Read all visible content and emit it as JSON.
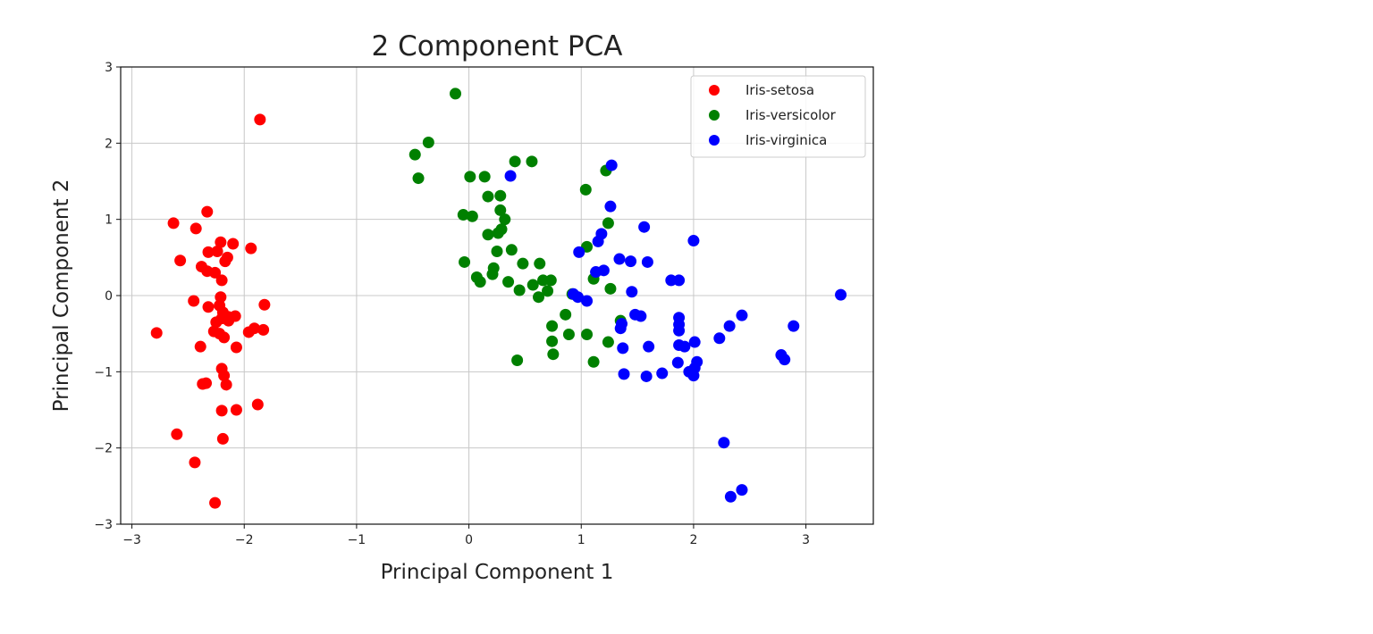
{
  "chart_data": {
    "type": "scatter",
    "title": "2 Component PCA",
    "xlabel": "Principal Component 1",
    "ylabel": "Principal Component 2",
    "xlim": [
      -3.1,
      3.6
    ],
    "ylim": [
      -3.0,
      3.0
    ],
    "xticks": [
      -3,
      -2,
      -1,
      0,
      1,
      2,
      3
    ],
    "yticks": [
      -3,
      -2,
      -1,
      0,
      1,
      2,
      3
    ],
    "tick_labels_x": [
      "−3",
      "−2",
      "−1",
      "0",
      "1",
      "2",
      "3"
    ],
    "tick_labels_y": [
      "−3",
      "−2",
      "−1",
      "0",
      "1",
      "2",
      "3"
    ],
    "grid": true,
    "legend_placement": "top-right",
    "series": [
      {
        "name": "Iris-setosa",
        "color": "#ff0000",
        "points": [
          [
            -1.86,
            2.31
          ],
          [
            -2.63,
            0.95
          ],
          [
            -2.33,
            1.1
          ],
          [
            -2.43,
            0.88
          ],
          [
            -2.21,
            0.7
          ],
          [
            -2.1,
            0.68
          ],
          [
            -1.94,
            0.62
          ],
          [
            -2.57,
            0.46
          ],
          [
            -2.32,
            0.57
          ],
          [
            -2.24,
            0.58
          ],
          [
            -2.17,
            0.45
          ],
          [
            -2.15,
            0.5
          ],
          [
            -2.38,
            0.38
          ],
          [
            -2.33,
            0.32
          ],
          [
            -2.26,
            0.3
          ],
          [
            -2.2,
            0.2
          ],
          [
            -2.21,
            -0.02
          ],
          [
            -2.45,
            -0.07
          ],
          [
            -2.32,
            -0.15
          ],
          [
            -2.22,
            -0.13
          ],
          [
            -2.19,
            -0.22
          ],
          [
            -2.14,
            -0.28
          ],
          [
            -2.2,
            -0.3
          ],
          [
            -2.08,
            -0.27
          ],
          [
            -2.25,
            -0.35
          ],
          [
            -2.14,
            -0.33
          ],
          [
            -1.82,
            -0.12
          ],
          [
            -2.78,
            -0.49
          ],
          [
            -2.27,
            -0.47
          ],
          [
            -2.22,
            -0.5
          ],
          [
            -2.18,
            -0.55
          ],
          [
            -1.96,
            -0.48
          ],
          [
            -1.91,
            -0.43
          ],
          [
            -1.83,
            -0.45
          ],
          [
            -2.39,
            -0.67
          ],
          [
            -2.07,
            -0.68
          ],
          [
            -2.2,
            -0.96
          ],
          [
            -2.18,
            -1.05
          ],
          [
            -2.16,
            -1.17
          ],
          [
            -2.34,
            -1.15
          ],
          [
            -2.37,
            -1.16
          ],
          [
            -1.88,
            -1.43
          ],
          [
            -2.2,
            -1.51
          ],
          [
            -2.07,
            -1.5
          ],
          [
            -2.6,
            -1.82
          ],
          [
            -2.19,
            -1.88
          ],
          [
            -2.44,
            -2.19
          ],
          [
            -2.26,
            -2.72
          ]
        ]
      },
      {
        "name": "Iris-versicolor",
        "color": "#008000",
        "points": [
          [
            -0.12,
            2.65
          ],
          [
            -0.36,
            2.01
          ],
          [
            -0.48,
            1.85
          ],
          [
            -0.45,
            1.54
          ],
          [
            0.01,
            1.56
          ],
          [
            0.14,
            1.56
          ],
          [
            0.41,
            1.76
          ],
          [
            0.56,
            1.76
          ],
          [
            0.17,
            1.3
          ],
          [
            0.28,
            1.31
          ],
          [
            0.28,
            1.12
          ],
          [
            0.32,
            1.0
          ],
          [
            -0.05,
            1.06
          ],
          [
            0.03,
            1.04
          ],
          [
            0.17,
            0.8
          ],
          [
            0.26,
            0.82
          ],
          [
            0.29,
            0.87
          ],
          [
            0.38,
            0.6
          ],
          [
            0.25,
            0.58
          ],
          [
            -0.04,
            0.44
          ],
          [
            0.48,
            0.42
          ],
          [
            0.63,
            0.42
          ],
          [
            0.22,
            0.36
          ],
          [
            0.21,
            0.28
          ],
          [
            0.07,
            0.24
          ],
          [
            0.1,
            0.18
          ],
          [
            0.35,
            0.18
          ],
          [
            0.57,
            0.14
          ],
          [
            0.66,
            0.2
          ],
          [
            0.73,
            0.2
          ],
          [
            0.45,
            0.07
          ],
          [
            0.7,
            0.06
          ],
          [
            0.62,
            -0.02
          ],
          [
            1.22,
            1.64
          ],
          [
            1.04,
            1.39
          ],
          [
            1.24,
            0.95
          ],
          [
            1.05,
            0.64
          ],
          [
            1.11,
            0.22
          ],
          [
            1.26,
            0.09
          ],
          [
            0.92,
            0.02
          ],
          [
            0.86,
            -0.25
          ],
          [
            1.35,
            -0.33
          ],
          [
            0.74,
            -0.4
          ],
          [
            0.89,
            -0.51
          ],
          [
            1.05,
            -0.51
          ],
          [
            0.74,
            -0.6
          ],
          [
            1.24,
            -0.61
          ],
          [
            0.75,
            -0.77
          ],
          [
            0.43,
            -0.85
          ],
          [
            1.11,
            -0.87
          ]
        ]
      },
      {
        "name": "Iris-virginica",
        "color": "#0000ff",
        "points": [
          [
            1.27,
            1.71
          ],
          [
            0.37,
            1.57
          ],
          [
            1.26,
            1.17
          ],
          [
            1.56,
            0.9
          ],
          [
            2.0,
            0.72
          ],
          [
            1.18,
            0.81
          ],
          [
            1.15,
            0.71
          ],
          [
            0.98,
            0.57
          ],
          [
            1.34,
            0.48
          ],
          [
            1.44,
            0.45
          ],
          [
            1.59,
            0.44
          ],
          [
            1.13,
            0.31
          ],
          [
            1.2,
            0.33
          ],
          [
            1.8,
            0.2
          ],
          [
            1.87,
            0.2
          ],
          [
            3.31,
            0.01
          ],
          [
            0.93,
            0.02
          ],
          [
            0.97,
            -0.02
          ],
          [
            1.05,
            -0.07
          ],
          [
            1.45,
            0.05
          ],
          [
            1.48,
            -0.25
          ],
          [
            1.53,
            -0.27
          ],
          [
            1.36,
            -0.37
          ],
          [
            1.35,
            -0.43
          ],
          [
            1.87,
            -0.29
          ],
          [
            1.87,
            -0.38
          ],
          [
            1.87,
            -0.46
          ],
          [
            1.87,
            -0.65
          ],
          [
            1.92,
            -0.67
          ],
          [
            2.01,
            -0.61
          ],
          [
            1.6,
            -0.67
          ],
          [
            1.37,
            -0.69
          ],
          [
            2.43,
            -0.26
          ],
          [
            2.32,
            -0.4
          ],
          [
            2.89,
            -0.4
          ],
          [
            2.23,
            -0.56
          ],
          [
            2.78,
            -0.78
          ],
          [
            2.81,
            -0.84
          ],
          [
            1.86,
            -0.88
          ],
          [
            2.03,
            -0.87
          ],
          [
            2.01,
            -0.95
          ],
          [
            1.96,
            -1.0
          ],
          [
            2.0,
            -1.05
          ],
          [
            1.38,
            -1.03
          ],
          [
            1.58,
            -1.06
          ],
          [
            1.72,
            -1.02
          ],
          [
            2.27,
            -1.93
          ],
          [
            2.33,
            -2.64
          ],
          [
            2.43,
            -2.55
          ]
        ]
      }
    ]
  }
}
